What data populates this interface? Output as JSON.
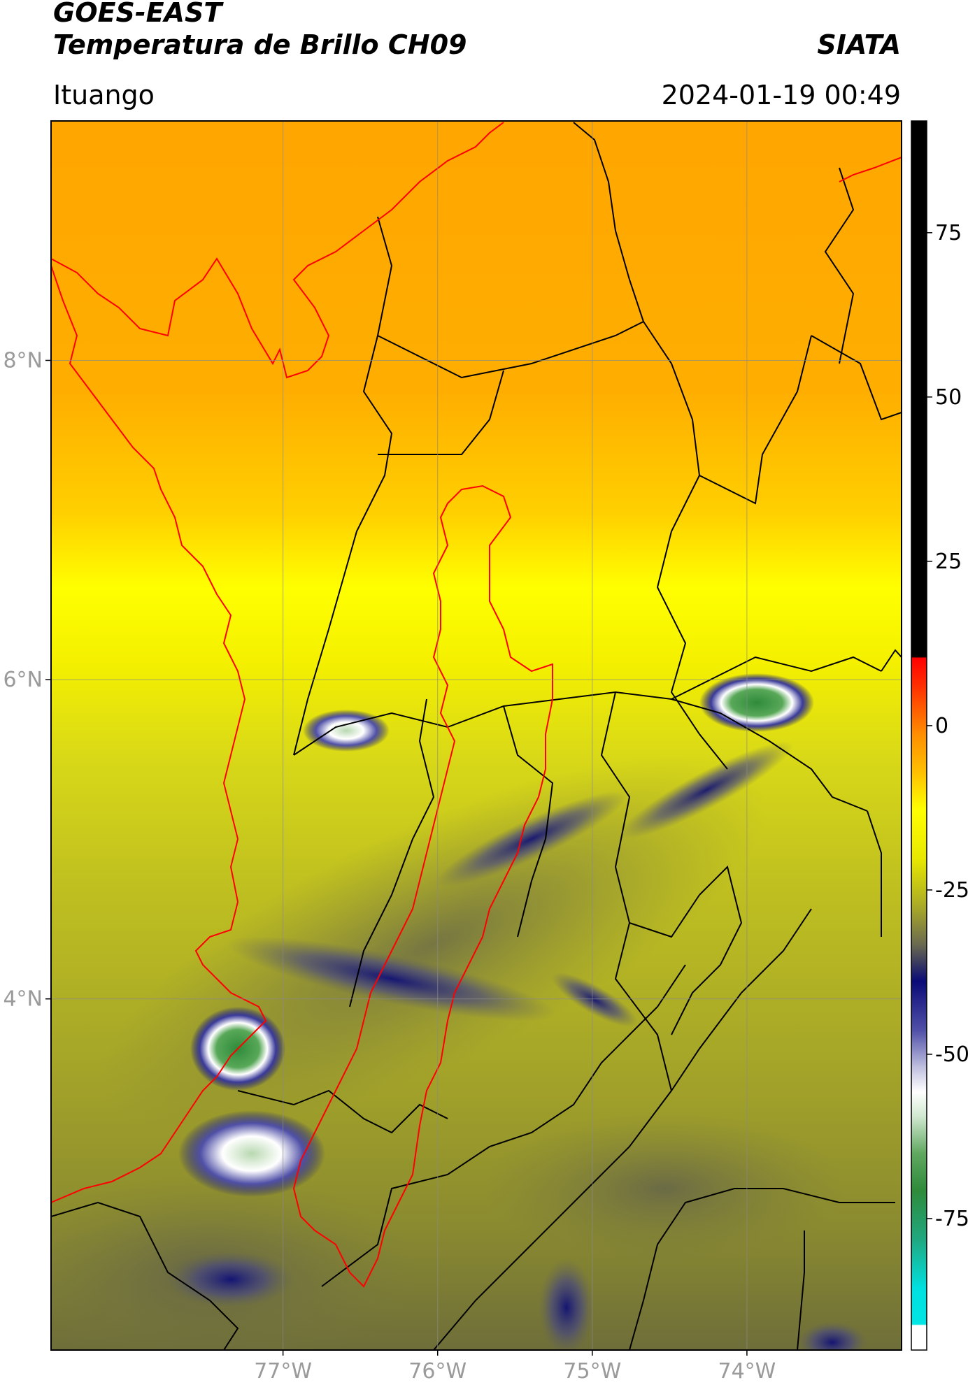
{
  "header": {
    "satellite": "GOES-EAST",
    "product": "Temperatura de Brillo CH09",
    "org": "SIATA",
    "location": "Ituango",
    "timestamp": "2024-01-19 00:49"
  },
  "map": {
    "lon_range": [
      -78.5,
      -73.0
    ],
    "lat_range": [
      1.8,
      9.5
    ],
    "lon_ticks": [
      {
        "value": -77,
        "label": "77°W"
      },
      {
        "value": -76,
        "label": "76°W"
      },
      {
        "value": -75,
        "label": "75°W"
      },
      {
        "value": -74,
        "label": "74°W"
      }
    ],
    "lat_ticks": [
      {
        "value": 8,
        "label": "8°N"
      },
      {
        "value": 6,
        "label": "6°N"
      },
      {
        "value": 4,
        "label": "4°N"
      }
    ],
    "gridlines": true,
    "boundary_color": "#000000",
    "basin_outline_color": "#ff0000"
  },
  "colorbar": {
    "range": [
      -95,
      92
    ],
    "ticks": [
      {
        "value": 75,
        "label": "75"
      },
      {
        "value": 50,
        "label": "50"
      },
      {
        "value": 25,
        "label": "25"
      },
      {
        "value": 0,
        "label": "0"
      },
      {
        "value": -25,
        "label": "-25"
      },
      {
        "value": -50,
        "label": "-50"
      },
      {
        "value": -75,
        "label": "-75"
      }
    ],
    "colors": {
      "above_8": "#000000",
      "red": "#ff0000",
      "orange": "#ff9800",
      "yellow": "#ffff00",
      "olive": "#a8a828",
      "gray": "#5a5a5a",
      "navy": "#0a0a78",
      "white": "#ffffff",
      "green": "#2e8b3a",
      "cyan": "#00e5e5"
    }
  }
}
